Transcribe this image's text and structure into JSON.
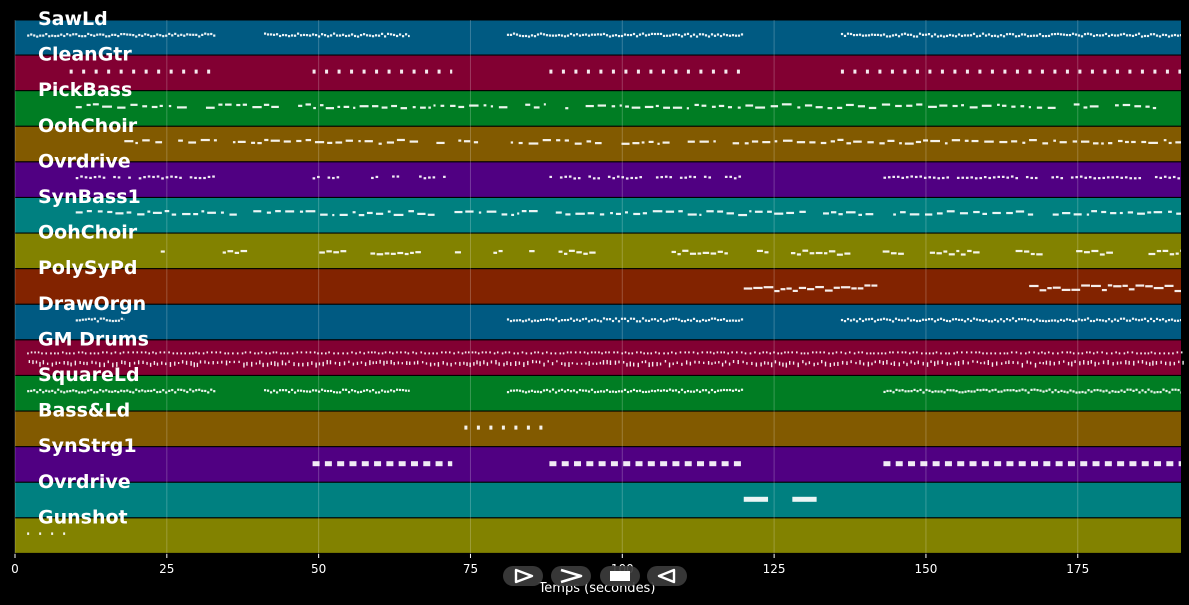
{
  "xaxis": {
    "label": "Temps (secondes)",
    "min": 0,
    "max": 192,
    "ticks": [
      0,
      25,
      50,
      75,
      100,
      125,
      150,
      175
    ]
  },
  "tracks": [
    {
      "name": "SawLd",
      "color": "#005a82",
      "pattern": "legato",
      "segments": [
        [
          2,
          33
        ],
        [
          41,
          65
        ],
        [
          81,
          120
        ],
        [
          136,
          192
        ]
      ]
    },
    {
      "name": "CleanGtr",
      "color": "#820032",
      "pattern": "staccato",
      "segments": [
        [
          9,
          33
        ],
        [
          49,
          72
        ],
        [
          88,
          120
        ],
        [
          136,
          192
        ]
      ]
    },
    {
      "name": "PickBass",
      "color": "#007d23",
      "pattern": "mixed",
      "segments": [
        [
          10,
          192
        ]
      ]
    },
    {
      "name": "OohChoir",
      "color": "#825a00",
      "pattern": "mixed",
      "segments": [
        [
          18,
          72
        ],
        [
          73,
          192
        ]
      ]
    },
    {
      "name": "Ovrdrive",
      "color": "#500082",
      "pattern": "sparse",
      "segments": [
        [
          10,
          33
        ],
        [
          49,
          72
        ],
        [
          88,
          120
        ],
        [
          143,
          192
        ]
      ]
    },
    {
      "name": "SynBass1",
      "color": "#008080",
      "pattern": "mixed",
      "segments": [
        [
          10,
          192
        ]
      ]
    },
    {
      "name": "OohChoir",
      "color": "#828200",
      "pattern": "clusters",
      "segments": [
        [
          24,
          192
        ]
      ]
    },
    {
      "name": "PolySyPd",
      "color": "#822300",
      "pattern": "chord",
      "segments": [
        [
          120,
          142
        ],
        [
          167,
          192
        ]
      ]
    },
    {
      "name": "DrawOrgn",
      "color": "#005a82",
      "pattern": "legato",
      "segments": [
        [
          10,
          18
        ],
        [
          81,
          120
        ],
        [
          136,
          192
        ]
      ]
    },
    {
      "name": "GM Drums",
      "color": "#820032",
      "pattern": "drums",
      "segments": [
        [
          2,
          192
        ]
      ]
    },
    {
      "name": "SquareLd",
      "color": "#007d23",
      "pattern": "legato",
      "segments": [
        [
          2,
          33
        ],
        [
          41,
          65
        ],
        [
          81,
          120
        ],
        [
          143,
          192
        ]
      ]
    },
    {
      "name": "Bass&Ld",
      "color": "#825a00",
      "pattern": "staccato",
      "segments": [
        [
          74,
          88
        ]
      ]
    },
    {
      "name": "SynStrg1",
      "color": "#500082",
      "pattern": "blocks",
      "segments": [
        [
          49,
          72
        ],
        [
          88,
          120
        ],
        [
          143,
          192
        ]
      ]
    },
    {
      "name": "Ovrdrive",
      "color": "#008080",
      "pattern": "long",
      "segments": [
        [
          120,
          124
        ],
        [
          128,
          132
        ]
      ]
    },
    {
      "name": "Gunshot",
      "color": "#828200",
      "pattern": "dots",
      "segments": [
        [
          2,
          9
        ]
      ]
    }
  ],
  "controls": [
    {
      "name": "play-button",
      "icon": "play-icon"
    },
    {
      "name": "fast-forward-button",
      "icon": "fast-forward-icon"
    },
    {
      "name": "stop-button",
      "icon": "stop-icon"
    },
    {
      "name": "rewind-button",
      "icon": "rewind-icon"
    }
  ]
}
